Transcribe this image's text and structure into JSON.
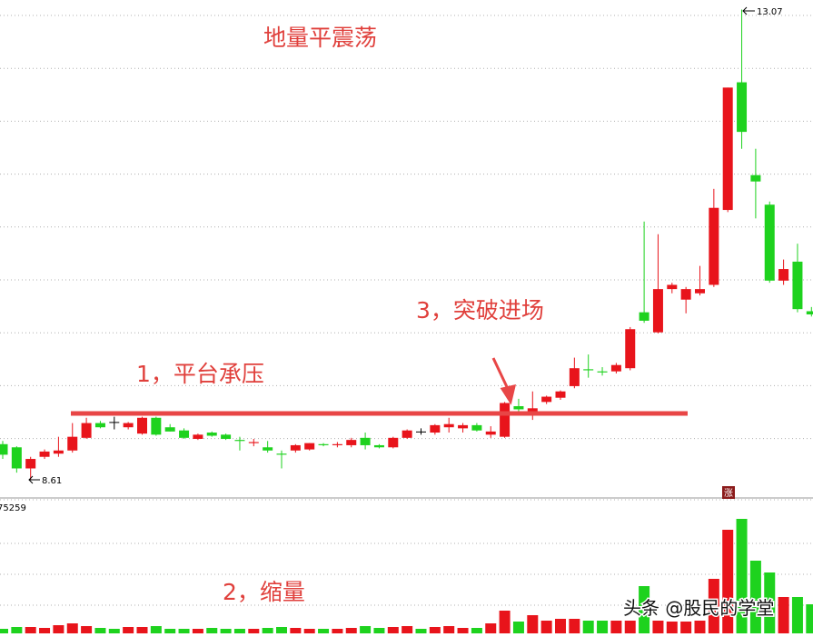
{
  "chart_data": [
    {
      "type": "candlestick",
      "title": "地量平震荡",
      "annotations": [
        "1，平台承压",
        "3，突破进场"
      ],
      "up_color": "#e8141b",
      "down_color": "#1ed21e",
      "flat_color": "#000000",
      "ylim": [
        8.44,
        13.16
      ],
      "open": [
        8.95,
        8.92,
        8.72,
        8.83,
        8.86,
        8.89,
        9.01,
        9.15,
        9.16,
        9.11,
        9.05,
        9.2,
        9.11,
        9.08,
        9.0,
        9.06,
        9.04,
        8.99,
        8.96,
        8.92,
        8.86,
        8.89,
        8.9,
        8.95,
        8.94,
        8.94,
        9.01,
        8.94,
        8.92,
        9.01,
        9.07,
        9.06,
        9.11,
        9.1,
        9.13,
        9.04,
        9.02,
        9.31,
        9.26,
        9.35,
        9.39,
        9.5,
        9.66,
        9.64,
        9.64,
        9.67,
        10.2,
        10.01,
        10.42,
        10.32,
        10.38,
        10.46,
        11.17,
        12.38,
        11.5,
        11.22,
        10.5,
        10.68,
        10.21
      ],
      "high": [
        8.98,
        8.93,
        8.83,
        8.9,
        9.02,
        9.15,
        9.2,
        9.17,
        9.21,
        9.16,
        9.21,
        9.21,
        9.14,
        9.1,
        9.05,
        9.07,
        9.05,
        9.02,
        9.0,
        8.98,
        8.89,
        8.95,
        8.96,
        8.96,
        8.97,
        9.01,
        9.06,
        8.95,
        9.02,
        9.09,
        9.1,
        9.14,
        9.2,
        9.15,
        9.15,
        9.12,
        9.35,
        9.38,
        9.45,
        9.41,
        9.46,
        9.77,
        9.8,
        9.68,
        9.72,
        10.06,
        11.06,
        10.94,
        10.48,
        10.44,
        10.64,
        11.37,
        12.33,
        13.07,
        11.75,
        11.25,
        10.7,
        10.85,
        10.25
      ],
      "low": [
        8.81,
        8.68,
        8.61,
        8.81,
        8.83,
        8.87,
        9.0,
        9.1,
        9.09,
        9.09,
        9.04,
        9.03,
        9.07,
        9.0,
        8.99,
        9.02,
        8.99,
        8.89,
        8.93,
        8.87,
        8.72,
        8.87,
        8.89,
        8.93,
        8.92,
        8.92,
        8.9,
        8.91,
        8.91,
        9.0,
        9.04,
        9.04,
        9.06,
        9.06,
        9.07,
        9.01,
        9.01,
        9.26,
        9.18,
        9.33,
        9.37,
        9.48,
        9.58,
        9.6,
        9.62,
        9.65,
        10.1,
        10.0,
        10.38,
        10.19,
        10.36,
        10.44,
        11.15,
        11.75,
        11.09,
        10.48,
        10.46,
        10.2,
        10.16
      ],
      "close": [
        8.85,
        8.72,
        8.81,
        8.88,
        8.89,
        9.02,
        9.15,
        9.11,
        9.16,
        9.15,
        9.2,
        9.04,
        9.07,
        9.01,
        9.04,
        9.03,
        9.0,
        8.98,
        8.97,
        8.89,
        8.85,
        8.94,
        8.96,
        8.94,
        8.95,
        8.99,
        8.94,
        8.92,
        9.01,
        9.08,
        9.07,
        9.13,
        9.14,
        9.13,
        9.08,
        9.07,
        9.34,
        9.28,
        9.29,
        9.4,
        9.45,
        9.67,
        9.65,
        9.63,
        9.7,
        10.04,
        10.12,
        10.42,
        10.46,
        10.42,
        10.42,
        11.19,
        12.33,
        11.91,
        11.44,
        10.5,
        10.61,
        10.23,
        10.18
      ]
    },
    {
      "type": "volume",
      "annotations": [
        "2，缩量"
      ],
      "ylim": [
        0,
        75259
      ],
      "yticks": [
        75259
      ],
      "values": [
        2560,
        3584,
        3584,
        3072,
        4608,
        5632,
        4096,
        3072,
        2560,
        3584,
        3584,
        4096,
        2560,
        2560,
        2560,
        3072,
        2560,
        2560,
        2560,
        3072,
        3584,
        3072,
        2560,
        2560,
        2560,
        3072,
        4096,
        3072,
        3584,
        4096,
        2560,
        3584,
        4096,
        3072,
        3072,
        5632,
        12800,
        6656,
        10240,
        7168,
        8192,
        8192,
        7168,
        7168,
        7168,
        7168,
        26624,
        7168,
        6656,
        6656,
        7168,
        30720,
        58368,
        64512,
        40960,
        34304,
        20480,
        20480,
        16384
      ]
    }
  ],
  "badge": "涨",
  "watermark": "头条 @股民的学堂"
}
